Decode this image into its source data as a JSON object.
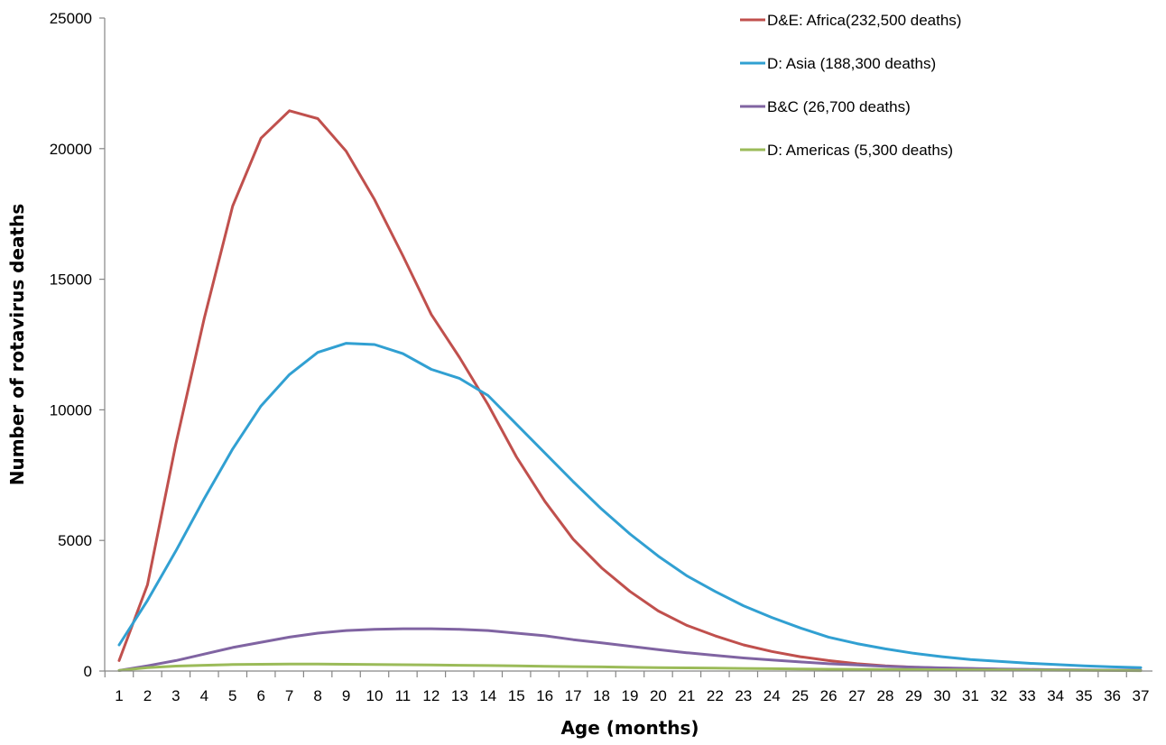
{
  "chart_data": {
    "type": "line",
    "title": "",
    "xlabel": "Age (months)",
    "ylabel": "Number of rotavirus deaths",
    "ylim": [
      0,
      25000
    ],
    "yticks": [
      0,
      5000,
      10000,
      15000,
      20000,
      25000
    ],
    "grid": false,
    "legend_position": "top-right",
    "x": [
      1,
      2,
      3,
      4,
      5,
      6,
      7,
      8,
      9,
      10,
      11,
      12,
      13,
      14,
      15,
      16,
      17,
      18,
      19,
      20,
      21,
      22,
      23,
      24,
      25,
      26,
      27,
      28,
      29,
      30,
      31,
      32,
      33,
      34,
      35,
      36,
      37
    ],
    "series": [
      {
        "name": "D&E: Africa(232,500 deaths)",
        "color": "#c0504d",
        "values": [
          400,
          3300,
          8700,
          13500,
          17800,
          20400,
          21450,
          21150,
          19900,
          18050,
          15900,
          13650,
          12000,
          10200,
          8200,
          6500,
          5050,
          3950,
          3050,
          2300,
          1750,
          1350,
          1000,
          750,
          550,
          400,
          280,
          200,
          150,
          110,
          90,
          70,
          55,
          45,
          35,
          30,
          25
        ]
      },
      {
        "name": "D: Asia (188,300 deaths)",
        "color": "#31a0d2",
        "values": [
          1000,
          2700,
          4600,
          6600,
          8500,
          10150,
          11350,
          12200,
          12550,
          12500,
          12150,
          11550,
          11200,
          10550,
          9450,
          8350,
          7250,
          6200,
          5250,
          4400,
          3650,
          3050,
          2500,
          2050,
          1650,
          1300,
          1050,
          850,
          680,
          550,
          440,
          370,
          300,
          250,
          200,
          160,
          130
        ]
      },
      {
        "name": "B&C (26,700 deaths)",
        "color": "#8064a2",
        "values": [
          20,
          200,
          400,
          650,
          900,
          1100,
          1300,
          1450,
          1550,
          1600,
          1620,
          1620,
          1600,
          1550,
          1450,
          1350,
          1200,
          1080,
          950,
          820,
          700,
          600,
          500,
          420,
          350,
          280,
          230,
          180,
          150,
          120,
          100,
          80,
          65,
          50,
          40,
          30,
          25
        ]
      },
      {
        "name": "D: Americas (5,300 deaths)",
        "color": "#9bbb59",
        "values": [
          20,
          130,
          190,
          220,
          250,
          260,
          270,
          270,
          260,
          250,
          240,
          230,
          220,
          210,
          200,
          180,
          170,
          160,
          140,
          130,
          120,
          110,
          100,
          90,
          80,
          70,
          65,
          60,
          55,
          50,
          45,
          40,
          35,
          30,
          25,
          20,
          15
        ]
      }
    ]
  }
}
